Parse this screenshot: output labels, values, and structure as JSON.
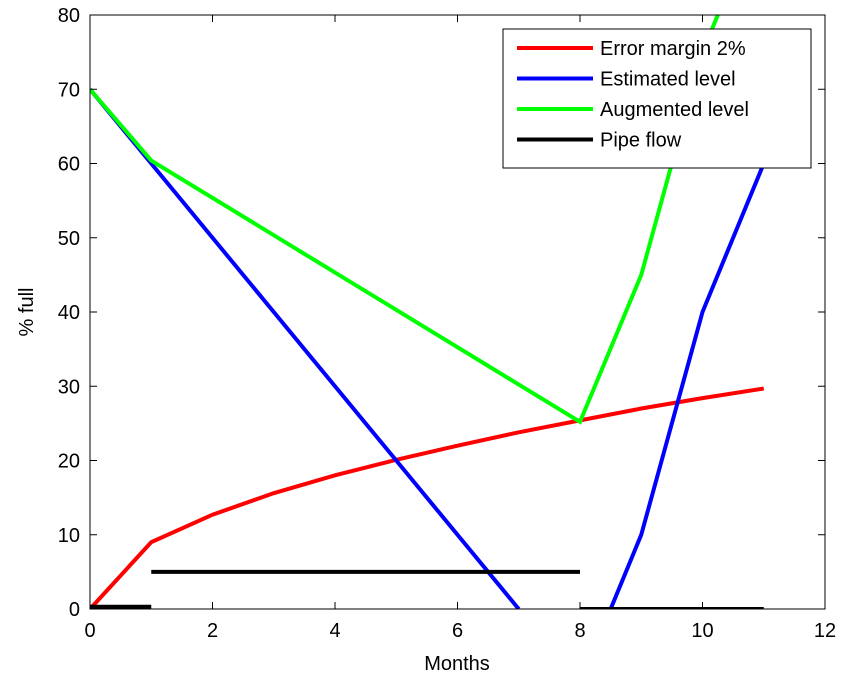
{
  "chart_data": {
    "type": "line",
    "xlabel": "Months",
    "ylabel": "% full",
    "xlim": [
      0,
      12
    ],
    "ylim": [
      0,
      80
    ],
    "xticks": [
      "0",
      "2",
      "4",
      "6",
      "8",
      "10",
      "12"
    ],
    "yticks": [
      "0",
      "10",
      "20",
      "30",
      "40",
      "50",
      "60",
      "70",
      "80"
    ],
    "grid": false,
    "legend_position": "top-right",
    "series": [
      {
        "name": "Error margin 2%",
        "color": "#ff0000",
        "segments": [
          [
            [
              0,
              0
            ],
            [
              1,
              9
            ],
            [
              2,
              12.7
            ],
            [
              3,
              15.6
            ],
            [
              4,
              18
            ],
            [
              5,
              20.1
            ],
            [
              6,
              22
            ],
            [
              7,
              23.8
            ],
            [
              8,
              25.4
            ],
            [
              9,
              27
            ],
            [
              10,
              28.4
            ],
            [
              11,
              29.7
            ]
          ]
        ]
      },
      {
        "name": "Estimated level",
        "color": "#0000ff",
        "segments": [
          [
            [
              0,
              70
            ],
            [
              1,
              60
            ],
            [
              2,
              50
            ],
            [
              3,
              40
            ],
            [
              4,
              30
            ],
            [
              5,
              20
            ],
            [
              6,
              10
            ],
            [
              7,
              0
            ]
          ],
          [
            [
              8.5,
              0
            ],
            [
              9,
              10
            ],
            [
              10,
              40
            ],
            [
              11,
              60
            ]
          ]
        ]
      },
      {
        "name": "Augmented level",
        "color": "#00ff00",
        "segments": [
          [
            [
              0,
              70
            ],
            [
              1,
              60.4
            ],
            [
              8,
              25.2
            ],
            [
              9,
              45
            ],
            [
              10,
              75
            ],
            [
              10.25,
              80
            ]
          ]
        ]
      },
      {
        "name": "Pipe flow",
        "color": "#000000",
        "segments": [
          [
            [
              0,
              0.3
            ],
            [
              1,
              0.3
            ]
          ],
          [
            [
              1,
              5
            ],
            [
              8,
              5
            ]
          ],
          [
            [
              8,
              0
            ],
            [
              11,
              0
            ]
          ]
        ]
      }
    ]
  }
}
